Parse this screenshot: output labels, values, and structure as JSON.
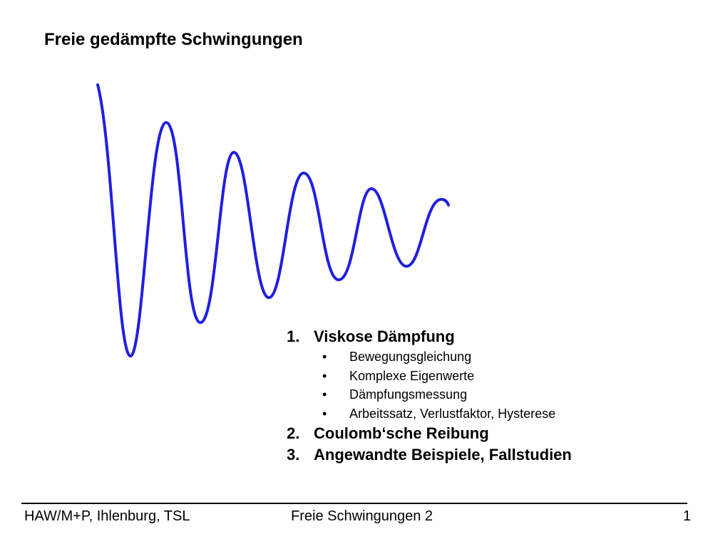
{
  "slide": {
    "title": "Freie gedämpfte Schwingungen",
    "wave_color": "#1f1fe0",
    "outline": {
      "item1": {
        "number": "1.",
        "label": "Viskose Dämpfung",
        "subitems": [
          "Bewegungsgleichung",
          "Komplexe Eigenwerte",
          "Dämpfungsmessung",
          "Arbeitssatz, Verlustfaktor, Hysterese"
        ]
      },
      "item2": {
        "number": "2.",
        "label": "Coulomb‘sche Reibung"
      },
      "item3": {
        "number": "3.",
        "label": "Angewandte Beispiele, Fallstudien"
      }
    }
  },
  "footer": {
    "left": "HAW/M+P, Ihlenburg, TSL",
    "center": "Freie Schwingungen 2",
    "right": "1"
  }
}
